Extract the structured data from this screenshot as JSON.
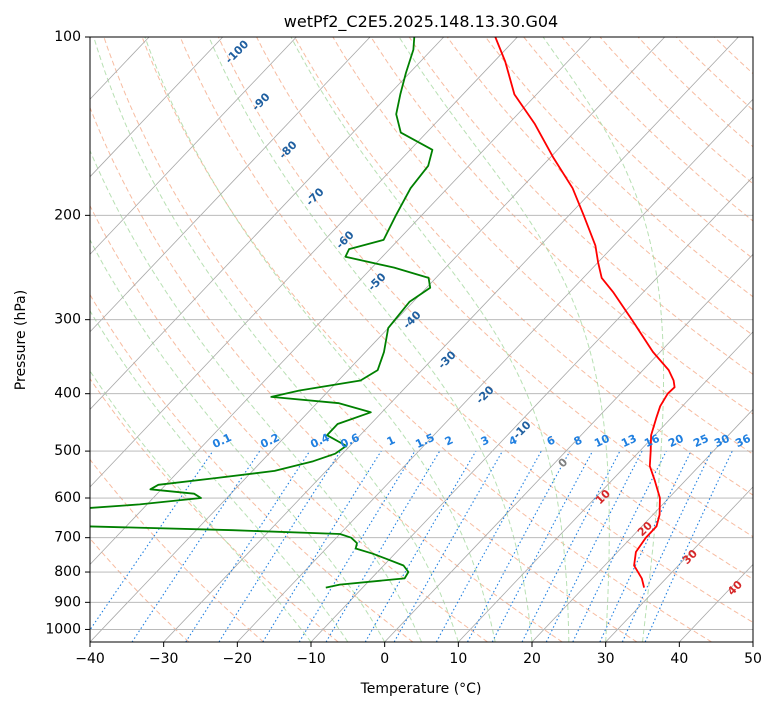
{
  "chart_data": {
    "type": "line",
    "title": "wetPf2_C2E5.2025.148.13.30.G04",
    "xlabel": "Temperature (°C)",
    "ylabel": "Pressure (hPa)",
    "xlim": [
      -40,
      50
    ],
    "ylim": [
      1050,
      100
    ],
    "y_scale": "log",
    "skew": true,
    "grid": true,
    "x_ticks": [
      -40,
      -30,
      -20,
      -10,
      0,
      10,
      20,
      30,
      40,
      50
    ],
    "x_tick_labels": [
      "−40",
      "−30",
      "−20",
      "−10",
      "0",
      "10",
      "20",
      "30",
      "40",
      "50"
    ],
    "y_ticks": [
      100,
      200,
      300,
      400,
      500,
      600,
      700,
      800,
      900,
      1000
    ],
    "y_tick_labels": [
      "100",
      "200",
      "300",
      "400",
      "500",
      "600",
      "700",
      "800",
      "900",
      "1000"
    ],
    "series": [
      {
        "role": "temperature",
        "color": "#ff0000",
        "points": [
          [
            850,
            28.2
          ],
          [
            820,
            26.7
          ],
          [
            780,
            24.0
          ],
          [
            740,
            22.5
          ],
          [
            700,
            22.0
          ],
          [
            670,
            22.0
          ],
          [
            640,
            20.9
          ],
          [
            600,
            18.8
          ],
          [
            560,
            15.8
          ],
          [
            530,
            13.3
          ],
          [
            500,
            11.5
          ],
          [
            470,
            9.5
          ],
          [
            440,
            8.0
          ],
          [
            420,
            7.0
          ],
          [
            400,
            6.4
          ],
          [
            390,
            6.5
          ],
          [
            380,
            5.5
          ],
          [
            365,
            3.5
          ],
          [
            340,
            -1.0
          ],
          [
            300,
            -8.0
          ],
          [
            270,
            -14.0
          ],
          [
            255,
            -17.5
          ],
          [
            240,
            -20.0
          ],
          [
            225,
            -22.5
          ],
          [
            200,
            -28.0
          ],
          [
            180,
            -33.0
          ],
          [
            160,
            -39.5
          ],
          [
            140,
            -46.5
          ],
          [
            125,
            -53.0
          ],
          [
            110,
            -58.5
          ],
          [
            100,
            -63.0
          ]
        ]
      },
      {
        "role": "dewpoint",
        "color": "#008000",
        "points": [
          [
            850,
            -15.0
          ],
          [
            840,
            -13.5
          ],
          [
            820,
            -5.5
          ],
          [
            800,
            -5.8
          ],
          [
            780,
            -7.3
          ],
          [
            760,
            -10.5
          ],
          [
            745,
            -13.0
          ],
          [
            730,
            -16.0
          ],
          [
            715,
            -16.5
          ],
          [
            700,
            -18.0
          ],
          [
            690,
            -20.0
          ],
          [
            680,
            -35.0
          ],
          [
            670,
            -55.0
          ],
          [
            660,
            -70.0
          ],
          [
            650,
            -74.0
          ],
          [
            640,
            -72.0
          ],
          [
            630,
            -62.0
          ],
          [
            615,
            -51.0
          ],
          [
            600,
            -43.5
          ],
          [
            590,
            -45.0
          ],
          [
            580,
            -51.5
          ],
          [
            570,
            -51.0
          ],
          [
            555,
            -44.0
          ],
          [
            540,
            -37.0
          ],
          [
            520,
            -33.0
          ],
          [
            505,
            -31.0
          ],
          [
            490,
            -30.5
          ],
          [
            470,
            -34.5
          ],
          [
            450,
            -34.5
          ],
          [
            430,
            -31.5
          ],
          [
            415,
            -37.0
          ],
          [
            405,
            -47.0
          ],
          [
            395,
            -44.0
          ],
          [
            380,
            -37.0
          ],
          [
            365,
            -36.0
          ],
          [
            340,
            -37.5
          ],
          [
            310,
            -40.0
          ],
          [
            280,
            -40.5
          ],
          [
            265,
            -39.5
          ],
          [
            255,
            -41.0
          ],
          [
            245,
            -47.0
          ],
          [
            235,
            -55.0
          ],
          [
            228,
            -55.5
          ],
          [
            220,
            -52.0
          ],
          [
            200,
            -53.5
          ],
          [
            180,
            -55.0
          ],
          [
            165,
            -55.5
          ],
          [
            155,
            -57.0
          ],
          [
            145,
            -63.5
          ],
          [
            135,
            -66.5
          ],
          [
            125,
            -68.5
          ],
          [
            115,
            -70.5
          ],
          [
            105,
            -72.5
          ],
          [
            100,
            -74.0
          ]
        ]
      }
    ],
    "dry_adiabat_labels": [
      "-100",
      "-90",
      "-80",
      "-70",
      "-60",
      "-50",
      "-40",
      "-30",
      "-20",
      "-10",
      "0",
      "10",
      "20",
      "30",
      "40"
    ],
    "mixing_ratio_labels": [
      "0.1",
      "0.2",
      "0.4",
      "0.6",
      "1",
      "1.5",
      "2",
      "3",
      "4",
      "6",
      "8",
      "10",
      "13",
      "16",
      "20",
      "25",
      "30",
      "36"
    ],
    "mixing_ratio_values": [
      0.1,
      0.2,
      0.4,
      0.6,
      1,
      1.5,
      2,
      3,
      4,
      6,
      8,
      10,
      13,
      16,
      20,
      25,
      30,
      36
    ],
    "colors": {
      "isobar": "#b0b0b0",
      "isotherm": "#a8a8a8",
      "dry_adiabat": "#f4a582",
      "moist_adiabat": "#a6d8a0",
      "mixing_ratio": "#1f7fe0",
      "label_cold": "#1f5fa0",
      "label_warm": "#d62728",
      "label_zero": "#7f7f7f"
    }
  }
}
